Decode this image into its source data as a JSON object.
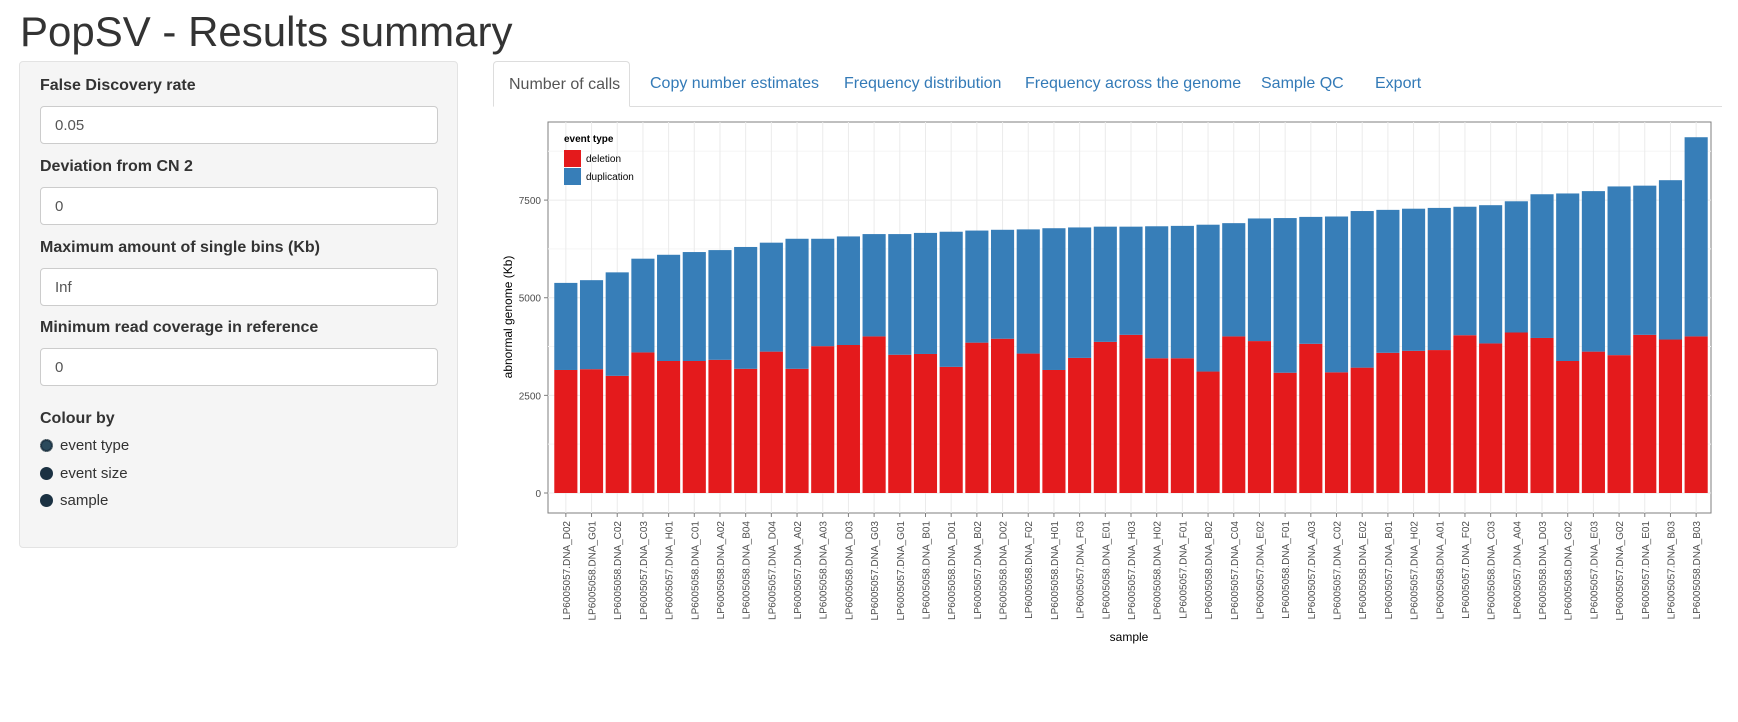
{
  "app": {
    "title": "PopSV - Results summary"
  },
  "sidebar": {
    "fdr_label": "False Discovery rate",
    "fdr_value": "0.05",
    "cn_label": "Deviation from CN 2",
    "cn_value": "0",
    "bins_label": "Maximum amount of single bins (Kb)",
    "bins_value": "Inf",
    "coverage_label": "Minimum read coverage in reference",
    "coverage_value": "0",
    "colour_label": "Colour by",
    "colour_options": [
      "event type",
      "event size",
      "sample"
    ],
    "colour_selected": "event type"
  },
  "tabs": [
    {
      "label": "Number of calls",
      "active": true
    },
    {
      "label": "Copy number estimates",
      "active": false
    },
    {
      "label": "Frequency distribution",
      "active": false
    },
    {
      "label": "Frequency across the genome",
      "active": false
    },
    {
      "label": "Sample QC",
      "active": false
    },
    {
      "label": "Export",
      "active": false
    }
  ],
  "colors": {
    "deletion": "#e41a1c",
    "duplication": "#377eb8",
    "link": "#337ab7"
  },
  "chart_data": {
    "type": "bar",
    "stacked": true,
    "xlabel": "sample",
    "ylabel": "abnormal genome (Kb)",
    "ylim": [
      0,
      9500
    ],
    "yticks": [
      0,
      2500,
      5000,
      7500
    ],
    "grid": true,
    "legend": {
      "title": "event type",
      "position": "top-left",
      "entries": [
        "deletion",
        "duplication"
      ]
    },
    "categories": [
      "LP6005057.DNA_D02",
      "LP6005058.DNA_G01",
      "LP6005058.DNA_C02",
      "LP6005057.DNA_C03",
      "LP6005057.DNA_H01",
      "LP6005058.DNA_C01",
      "LP6005058.DNA_A02",
      "LP6005058.DNA_B04",
      "LP6005057.DNA_D04",
      "LP6005057.DNA_A02",
      "LP6005058.DNA_A03",
      "LP6005058.DNA_D03",
      "LP6005057.DNA_G03",
      "LP6005057.DNA_G01",
      "LP6005058.DNA_B01",
      "LP6005058.DNA_D01",
      "LP6005057.DNA_B02",
      "LP6005058.DNA_D02",
      "LP6005058.DNA_F02",
      "LP6005058.DNA_H01",
      "LP6005057.DNA_F03",
      "LP6005058.DNA_E01",
      "LP6005057.DNA_H03",
      "LP6005058.DNA_H02",
      "LP6005057.DNA_F01",
      "LP6005058.DNA_B02",
      "LP6005057.DNA_C04",
      "LP6005057.DNA_E02",
      "LP6005058.DNA_F01",
      "LP6005057.DNA_A03",
      "LP6005057.DNA_C02",
      "LP6005058.DNA_E02",
      "LP6005057.DNA_B01",
      "LP6005057.DNA_H02",
      "LP6005058.DNA_A01",
      "LP6005057.DNA_F02",
      "LP6005058.DNA_C03",
      "LP6005057.DNA_A04",
      "LP6005058.DNA_D03",
      "LP6005058.DNA_G02",
      "LP6005057.DNA_E03",
      "LP6005057.DNA_G02",
      "LP6005057.DNA_E01",
      "LP6005057.DNA_B03",
      "LP6005058.DNA_B03"
    ],
    "series": [
      {
        "name": "deletion",
        "values": [
          3150,
          3170,
          3000,
          3600,
          3380,
          3380,
          3410,
          3180,
          3620,
          3180,
          3760,
          3790,
          4010,
          3540,
          3560,
          3230,
          3850,
          3950,
          3570,
          3150,
          3460,
          3870,
          4050,
          3450,
          3450,
          3110,
          4010,
          3890,
          3080,
          3820,
          3090,
          3210,
          3590,
          3640,
          3660,
          4040,
          3830,
          4110,
          3970,
          3380,
          3620,
          3530,
          4050,
          3930,
          4010
        ]
      },
      {
        "name": "duplication",
        "values": [
          2230,
          2280,
          2650,
          2400,
          2720,
          2790,
          2810,
          3120,
          2790,
          3330,
          2750,
          2780,
          2620,
          3090,
          3100,
          3460,
          2870,
          2790,
          3180,
          3630,
          3340,
          2950,
          2770,
          3380,
          3390,
          3760,
          2900,
          3140,
          3960,
          3250,
          3990,
          4010,
          3660,
          3640,
          3640,
          3290,
          3540,
          3360,
          3680,
          4290,
          4110,
          4320,
          3820,
          4080,
          5100
        ]
      }
    ]
  }
}
